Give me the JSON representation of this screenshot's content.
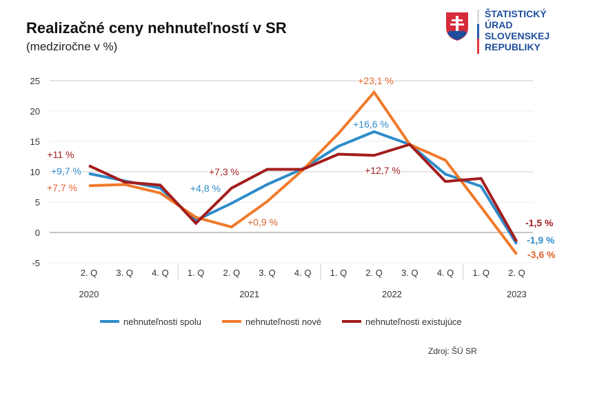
{
  "header": {
    "title": "Realizačné ceny nehnuteľností v SR",
    "subtitle": "(medziročne v %)"
  },
  "logo": {
    "lines": [
      "ŠTATISTICKÝ",
      "ÚRAD",
      "SLOVENSKEJ",
      "REPUBLIKY"
    ]
  },
  "source": "Zdroj: ŠÚ SR",
  "chart_data": {
    "type": "line",
    "title": "Realizačné ceny nehnuteľností v SR",
    "ylabel": "medziročne v %",
    "ylim": [
      -5,
      25
    ],
    "yticks": [
      "25",
      "20",
      "15",
      "10",
      "5",
      "0",
      "-5"
    ],
    "yticks_values": [
      25,
      20,
      15,
      10,
      5,
      0,
      -5
    ],
    "grid": true,
    "legend": "bottom",
    "categories": [
      "2. Q",
      "3. Q",
      "4. Q",
      "1. Q",
      "2. Q",
      "3. Q",
      "4. Q",
      "1. Q",
      "2. Q",
      "3. Q",
      "4. Q",
      "1. Q",
      "2. Q"
    ],
    "years": [
      {
        "label": "2020",
        "from": 0,
        "to": 2
      },
      {
        "label": "2021",
        "from": 3,
        "to": 6
      },
      {
        "label": "2022",
        "from": 7,
        "to": 10
      },
      {
        "label": "2023",
        "from": 11,
        "to": 12
      }
    ],
    "series": [
      {
        "name": "nehnuteľnosti spolu",
        "color": "#2e8bc9",
        "values": [
          9.7,
          8.5,
          7.3,
          2.0,
          4.8,
          7.9,
          10.5,
          14.2,
          16.6,
          14.5,
          9.6,
          7.6,
          -1.9
        ]
      },
      {
        "name": "nehnuteľnosti nové",
        "color": "#f07a2a",
        "values": [
          7.7,
          7.9,
          6.5,
          2.5,
          0.9,
          5.1,
          10.3,
          16.3,
          23.1,
          14.5,
          11.9,
          4.2,
          -3.6
        ]
      },
      {
        "name": "nehnuteľnosti existujúce",
        "color": "#a31d1d",
        "values": [
          11.0,
          8.3,
          7.8,
          1.5,
          7.3,
          10.4,
          10.4,
          12.9,
          12.7,
          14.5,
          8.4,
          8.9,
          -1.5
        ]
      }
    ],
    "annotations": [
      {
        "text": "+11 %",
        "series": 2,
        "index": 0,
        "color": "#a31d1d",
        "bold": false
      },
      {
        "text": "+9,7 %",
        "series": 0,
        "index": 0,
        "color": "#2e8bc9",
        "bold": false
      },
      {
        "text": "+7,7 %",
        "series": 1,
        "index": 0,
        "color": "#e0622a",
        "bold": false
      },
      {
        "text": "+7,3 %",
        "series": 2,
        "index": 4,
        "color": "#a31d1d",
        "bold": false
      },
      {
        "text": "+4,8 %",
        "series": 0,
        "index": 4,
        "color": "#2e8bc9",
        "bold": false
      },
      {
        "text": "+0,9 %",
        "series": 1,
        "index": 4,
        "color": "#e0622a",
        "bold": false
      },
      {
        "text": "+23,1 %",
        "series": 1,
        "index": 8,
        "color": "#e0622a",
        "bold": false
      },
      {
        "text": "+16,6 %",
        "series": 0,
        "index": 8,
        "color": "#2e8bc9",
        "bold": false
      },
      {
        "text": "+12,7 %",
        "series": 2,
        "index": 8,
        "color": "#a31d1d",
        "bold": false
      },
      {
        "text": "-1,5 %",
        "series": 2,
        "index": 12,
        "color": "#a31d1d",
        "bold": true
      },
      {
        "text": "-1,9 %",
        "series": 0,
        "index": 12,
        "color": "#2e8bc9",
        "bold": true
      },
      {
        "text": "-3,6 %",
        "series": 1,
        "index": 12,
        "color": "#e0622a",
        "bold": true
      }
    ]
  }
}
